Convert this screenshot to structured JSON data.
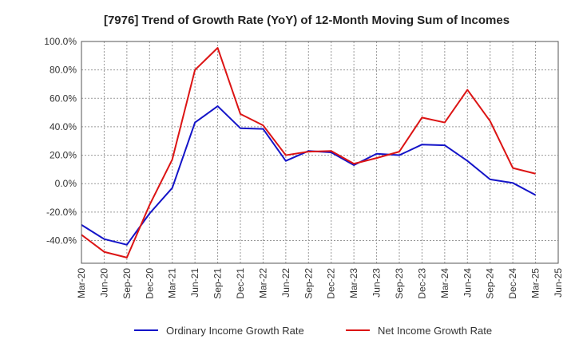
{
  "chart_data": {
    "type": "line",
    "title": "[7976]  Trend of Growth Rate (YoY) of 12-Month Moving Sum of Incomes",
    "xlabel": "",
    "ylabel": "",
    "ylim": [
      -56,
      100
    ],
    "y_ticks": [
      100,
      80,
      60,
      40,
      20,
      0,
      -20,
      -40
    ],
    "y_tick_labels": [
      "100.0%",
      "80.0%",
      "60.0%",
      "40.0%",
      "20.0%",
      "0.0%",
      "-20.0%",
      "-40.0%"
    ],
    "x_tick_labels": [
      "Mar-20",
      "Jun-20",
      "Sep-20",
      "Dec-20",
      "Mar-21",
      "Jun-21",
      "Sep-21",
      "Dec-21",
      "Mar-22",
      "Jun-22",
      "Sep-22",
      "Dec-22",
      "Mar-23",
      "Jun-23",
      "Sep-23",
      "Dec-23",
      "Mar-24",
      "Jun-24",
      "Sep-24",
      "Dec-24",
      "Mar-25",
      "Jun-25"
    ],
    "grid": true,
    "legend_position": "bottom",
    "series": [
      {
        "name": "Ordinary Income Growth Rate",
        "color": "#1414c8",
        "values": [
          -29,
          -39,
          -43,
          -21,
          -3,
          43,
          54.5,
          39,
          38.5,
          16,
          23,
          22,
          13,
          21,
          20,
          27.5,
          27,
          16,
          3,
          0.5,
          -8
        ]
      },
      {
        "name": "Net Income Growth Rate",
        "color": "#dc1414",
        "values": [
          -36,
          -48,
          -52,
          -15,
          17,
          80,
          95.5,
          49,
          41,
          20,
          22.5,
          23,
          14,
          18,
          22.5,
          46.5,
          43,
          66,
          44,
          11,
          7
        ]
      }
    ]
  }
}
